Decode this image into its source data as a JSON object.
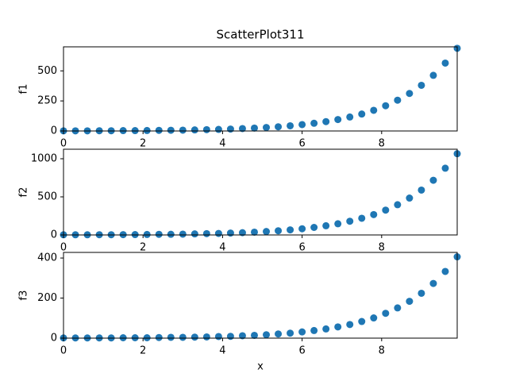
{
  "chart_data": [
    {
      "type": "scatter",
      "title": "ScatterPlot311",
      "ylabel": "f1",
      "color": "#1f77b4",
      "x": [
        0,
        0.3,
        0.6,
        0.9,
        1.2,
        1.5,
        1.8,
        2.1,
        2.4,
        2.7,
        3.0,
        3.3,
        3.6,
        3.9,
        4.2,
        4.5,
        4.8,
        5.1,
        5.4,
        5.7,
        6.0,
        6.3,
        6.6,
        6.9,
        7.2,
        7.5,
        7.8,
        8.1,
        8.4,
        8.7,
        9.0,
        9.3,
        9.6,
        9.9
      ],
      "values": [
        1,
        1,
        1,
        2,
        2,
        3,
        3,
        4,
        5,
        6,
        7,
        9,
        11,
        13,
        16,
        20,
        24,
        29,
        35,
        43,
        53,
        64,
        78,
        95,
        116,
        141,
        172,
        210,
        256,
        312,
        380,
        463,
        565,
        688
      ],
      "xlim": [
        0,
        9.9
      ],
      "xticks": [
        0,
        2,
        4,
        6,
        8
      ],
      "ylim": [
        0,
        700
      ],
      "yticks": [
        0,
        250,
        500
      ]
    },
    {
      "type": "scatter",
      "ylabel": "f2",
      "color": "#1f77b4",
      "x": [
        0,
        0.3,
        0.6,
        0.9,
        1.2,
        1.5,
        1.8,
        2.1,
        2.4,
        2.7,
        3.0,
        3.3,
        3.6,
        3.9,
        4.2,
        4.5,
        4.8,
        5.1,
        5.4,
        5.7,
        6.0,
        6.3,
        6.6,
        6.9,
        7.2,
        7.5,
        7.8,
        8.1,
        8.4,
        8.7,
        9.0,
        9.3,
        9.6,
        9.9
      ],
      "values": [
        2,
        2,
        2,
        3,
        3,
        4,
        5,
        6,
        8,
        9,
        11,
        14,
        17,
        20,
        25,
        30,
        37,
        45,
        55,
        67,
        81,
        99,
        121,
        147,
        180,
        219,
        267,
        326,
        397,
        484,
        589,
        718,
        876,
        1066
      ],
      "xlim": [
        0,
        9.9
      ],
      "xticks": [
        0,
        2,
        4,
        6,
        8
      ],
      "ylim": [
        0,
        1125
      ],
      "yticks": [
        0,
        500,
        1000
      ]
    },
    {
      "type": "scatter",
      "ylabel": "f3",
      "xlabel": "x",
      "color": "#1f77b4",
      "x": [
        0,
        0.3,
        0.6,
        0.9,
        1.2,
        1.5,
        1.8,
        2.1,
        2.4,
        2.7,
        3.0,
        3.3,
        3.6,
        3.9,
        4.2,
        4.5,
        4.8,
        5.1,
        5.4,
        5.7,
        6.0,
        6.3,
        6.6,
        6.9,
        7.2,
        7.5,
        7.8,
        8.1,
        8.4,
        8.7,
        9.0,
        9.3,
        9.6,
        9.9
      ],
      "values": [
        1,
        1,
        1,
        1,
        1,
        2,
        2,
        2,
        3,
        4,
        4,
        5,
        6,
        8,
        9,
        12,
        14,
        17,
        21,
        25,
        31,
        38,
        46,
        56,
        68,
        83,
        101,
        124,
        151,
        184,
        224,
        273,
        333,
        406
      ],
      "xlim": [
        0,
        9.9
      ],
      "xticks": [
        0,
        2,
        4,
        6,
        8
      ],
      "ylim": [
        0,
        428
      ],
      "yticks": [
        0,
        200,
        400
      ]
    }
  ]
}
